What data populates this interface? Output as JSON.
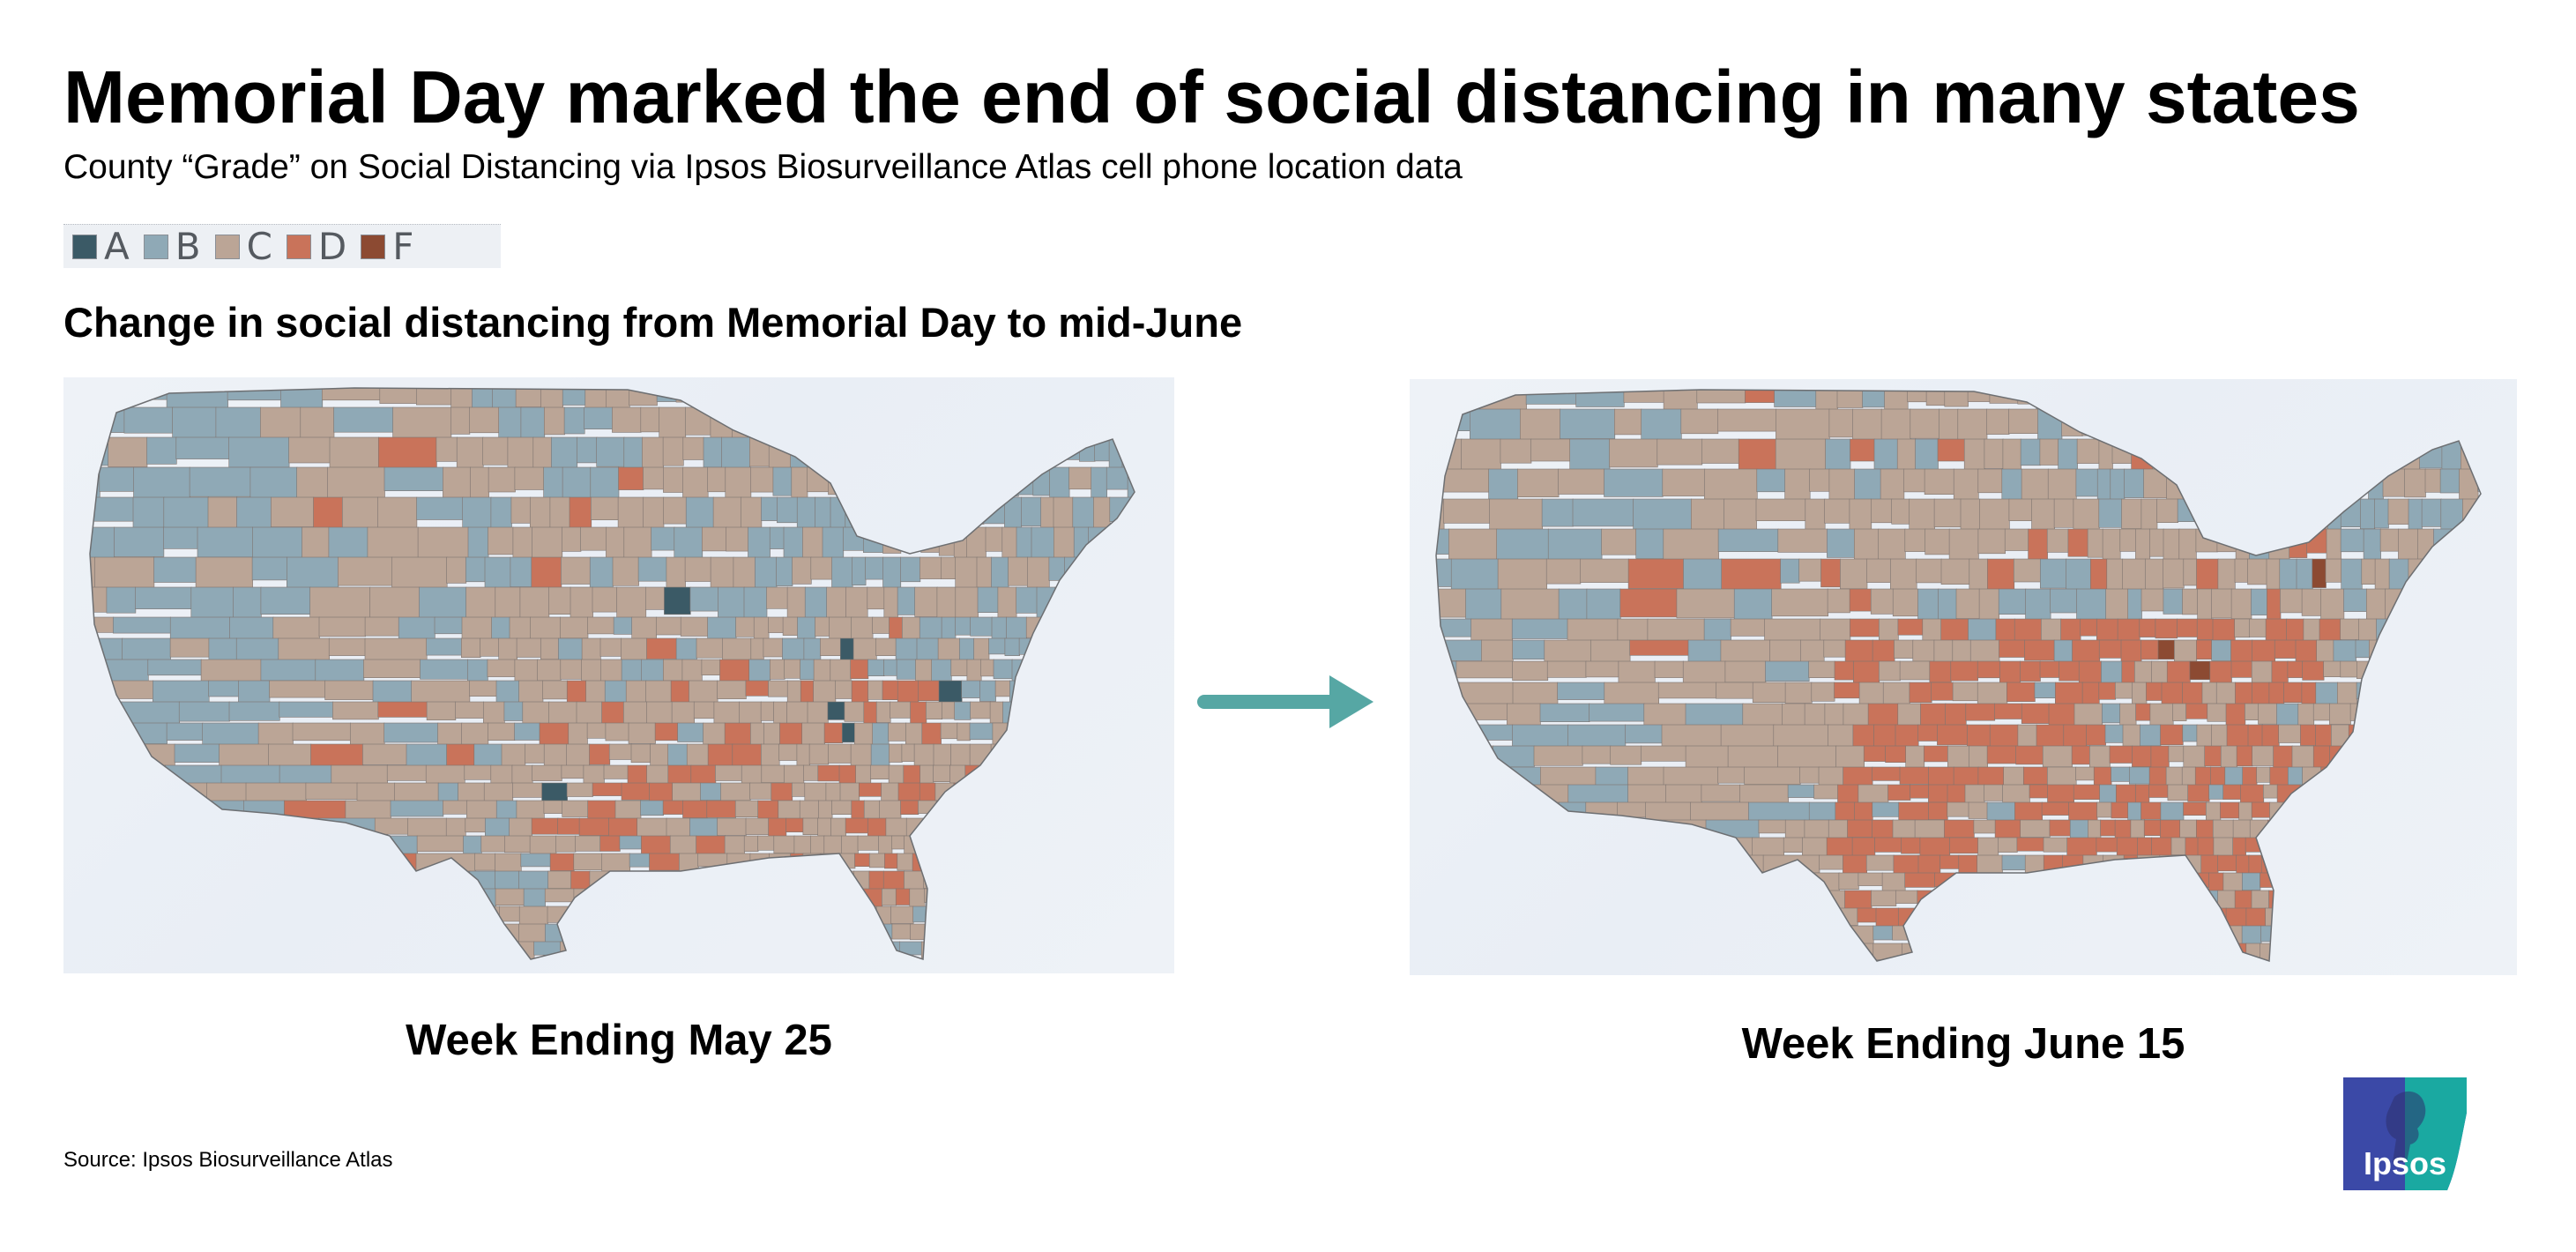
{
  "title": "Memorial Day marked the end of social distancing in many states",
  "subtitle": "County “Grade” on Social Distancing via Ipsos Biosurveillance Atlas cell phone location data",
  "legend": [
    {
      "label": "A",
      "color": "#3b5a66"
    },
    {
      "label": "B",
      "color": "#8fa9b6"
    },
    {
      "label": "C",
      "color": "#bba596"
    },
    {
      "label": "D",
      "color": "#c9735a"
    },
    {
      "label": "F",
      "color": "#8c4a32"
    }
  ],
  "section_heading": "Change in social distancing from Memorial Day to mid-June",
  "maps": [
    {
      "caption": "Week Ending May 25"
    },
    {
      "caption": "Week Ending June 15"
    }
  ],
  "source": "Source: Ipsos Biosurveillance Atlas",
  "logo_text": "Ipsos",
  "colors": {
    "arrow": "#56a7a4",
    "logo_blue": "#3b49a7",
    "logo_teal": "#1aa9a1"
  }
}
